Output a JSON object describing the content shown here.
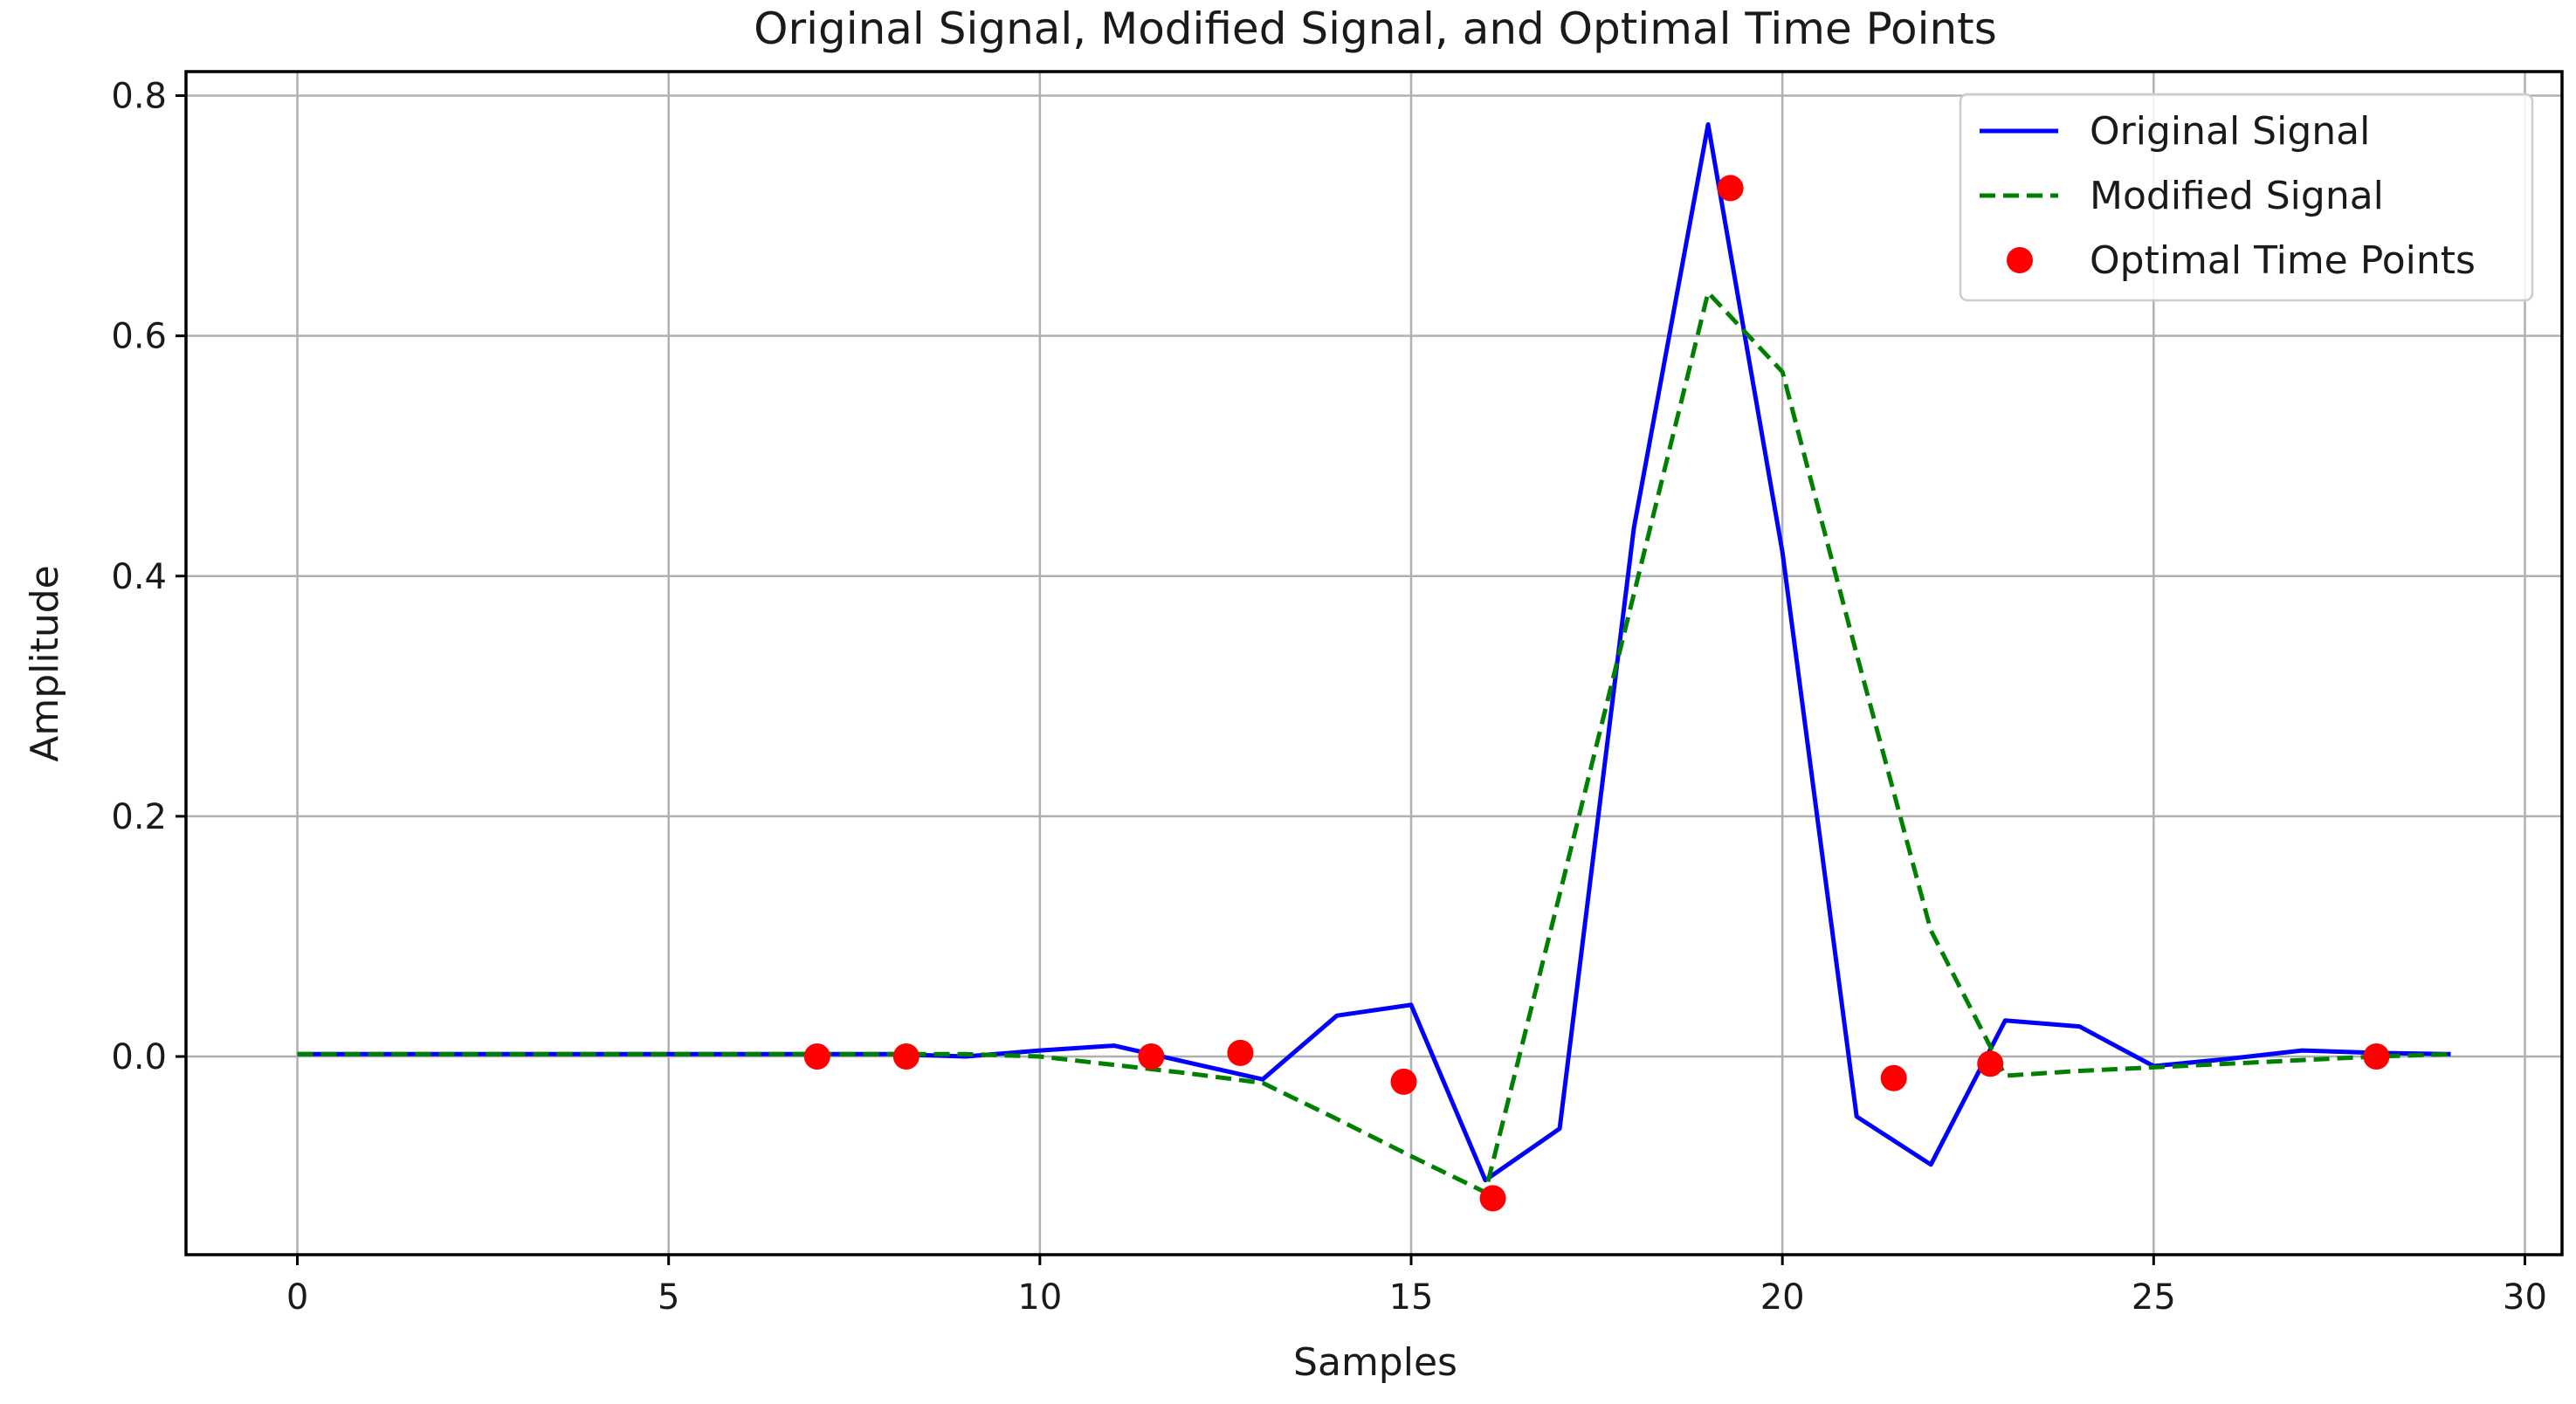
{
  "chart_data": {
    "type": "line",
    "title": "Original Signal, Modified Signal, and Optimal Time Points",
    "xlabel": "Samples",
    "ylabel": "Amplitude",
    "xlim": [
      -1.5,
      30.5
    ],
    "ylim": [
      -0.165,
      0.82
    ],
    "xticks": [
      0,
      5,
      10,
      15,
      20,
      25,
      30
    ],
    "yticks": [
      0.0,
      0.2,
      0.4,
      0.6,
      0.8
    ],
    "xtick_labels": [
      "0",
      "5",
      "10",
      "15",
      "20",
      "25",
      "30"
    ],
    "ytick_labels": [
      "0.0",
      "0.2",
      "0.4",
      "0.6",
      "0.8"
    ],
    "grid": true,
    "legend_position": "top-right",
    "series": [
      {
        "name": "Original Signal",
        "style": "solid",
        "color": "#0000ff",
        "x": [
          0,
          1,
          2,
          3,
          4,
          5,
          6,
          7,
          8,
          9,
          10,
          11,
          12,
          13,
          14,
          15,
          16,
          17,
          18,
          19,
          20,
          21,
          22,
          23,
          24,
          25,
          26,
          27,
          28,
          29
        ],
        "y": [
          0.002,
          0.002,
          0.002,
          0.002,
          0.002,
          0.002,
          0.002,
          0.002,
          0.002,
          0.0,
          0.005,
          0.009,
          -0.005,
          -0.019,
          0.034,
          0.043,
          -0.103,
          -0.06,
          0.44,
          0.776,
          0.42,
          -0.05,
          -0.09,
          0.03,
          0.025,
          -0.008,
          -0.002,
          0.005,
          0.003,
          0.002
        ]
      },
      {
        "name": "Modified Signal",
        "style": "dashed",
        "color": "#008000",
        "x": [
          0,
          7,
          8,
          9,
          10,
          11,
          12,
          13,
          14,
          15,
          16,
          17,
          18,
          19,
          20,
          21,
          22,
          23,
          24,
          25,
          26,
          27,
          28,
          29
        ],
        "y": [
          0.002,
          0.002,
          0.002,
          0.002,
          0.0,
          -0.007,
          -0.014,
          -0.022,
          -0.052,
          -0.083,
          -0.113,
          0.135,
          0.385,
          0.636,
          0.57,
          0.335,
          0.105,
          -0.016,
          -0.012,
          -0.009,
          -0.006,
          -0.003,
          0.0,
          0.002
        ]
      },
      {
        "name": "Optimal Time Points",
        "style": "markers",
        "color": "#ff0000",
        "x": [
          7.0,
          8.2,
          11.5,
          12.7,
          14.9,
          16.1,
          19.3,
          21.5,
          22.8,
          28.0
        ],
        "y": [
          0.0,
          0.0,
          0.0,
          0.003,
          -0.021,
          -0.118,
          0.723,
          -0.018,
          -0.006,
          0.0
        ]
      }
    ]
  }
}
